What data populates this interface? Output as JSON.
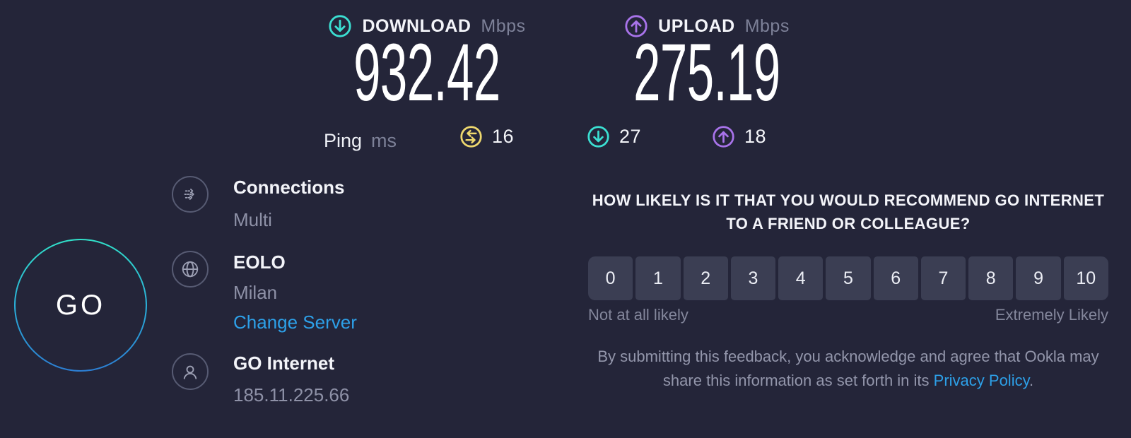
{
  "header": {
    "download": {
      "label": "DOWNLOAD",
      "unit": "Mbps",
      "value": "932.42"
    },
    "upload": {
      "label": "UPLOAD",
      "unit": "Mbps",
      "value": "275.19"
    }
  },
  "latency": {
    "label": "Ping",
    "unit": "ms",
    "idle": "16",
    "download": "27",
    "upload": "18"
  },
  "go_button": {
    "label": "GO"
  },
  "connection": {
    "connections": {
      "title": "Connections",
      "value": "Multi"
    },
    "server": {
      "name": "EOLO",
      "location": "Milan",
      "change_link": "Change Server"
    },
    "isp": {
      "name": "GO Internet",
      "ip": "185.11.225.66"
    }
  },
  "survey": {
    "question": "HOW LIKELY IS IT THAT YOU WOULD RECOMMEND GO INTERNET TO A FRIEND OR COLLEAGUE?",
    "scale": [
      "0",
      "1",
      "2",
      "3",
      "4",
      "5",
      "6",
      "7",
      "8",
      "9",
      "10"
    ],
    "min_label": "Not at all likely",
    "max_label": "Extremely Likely",
    "disclaimer_before_link": "By submitting this feedback, you acknowledge and agree that Ookla may share this information as set forth in its ",
    "privacy_link": "Privacy Policy",
    "disclaimer_after_link": "."
  },
  "colors": {
    "background": "#242539",
    "download_accent": "#3bdfd2",
    "upload_accent": "#a873ea",
    "ping_accent": "#eed86e",
    "link_blue": "#2da0e8",
    "rating_button_bg": "#3b3e53",
    "go_gradient_top": "#31e1c9",
    "go_gradient_bottom": "#2c7ed3"
  }
}
